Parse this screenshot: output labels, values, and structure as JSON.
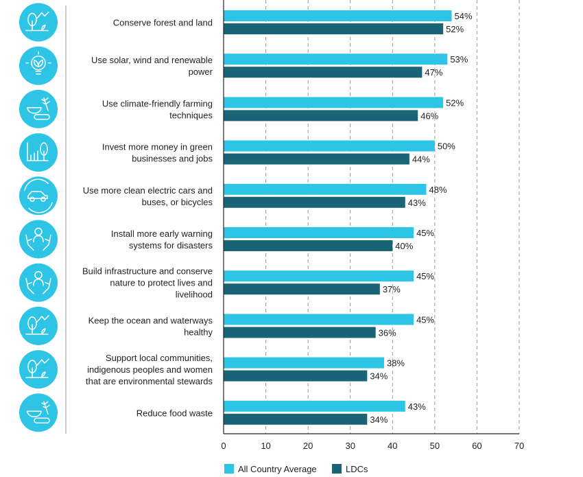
{
  "chart_data": {
    "type": "bar",
    "orientation": "horizontal",
    "categories": [
      "Conserve forest and land",
      "Use solar, wind and renewable power",
      "Use climate-friendly farming techniques",
      "Invest more money in green businesses and jobs",
      "Use more clean electric cars and buses, or bicycles",
      "Install more early warning systems for disasters",
      "Build infrastructure and conserve nature to protect lives and livelihood",
      "Keep the ocean and waterways healthy",
      "Support local communities, indigenous peoples and women that are environmental stewards",
      "Reduce food waste"
    ],
    "category_lines": [
      [
        "Conserve forest and land"
      ],
      [
        "Use solar, wind and renewable",
        "power"
      ],
      [
        "Use climate-friendly farming",
        "techniques"
      ],
      [
        "Invest more money in green",
        "businesses and jobs"
      ],
      [
        "Use more clean electric cars and",
        "buses, or bicycles"
      ],
      [
        "Install more early warning",
        "systems for disasters"
      ],
      [
        "Build infrastructure and conserve",
        "nature to protect lives and",
        "livelihood"
      ],
      [
        "Keep the ocean and waterways",
        "healthy"
      ],
      [
        "Support local communities,",
        "indigenous peoples and women",
        "that are environmental stewards"
      ],
      [
        "Reduce food waste"
      ]
    ],
    "icons": [
      "tree-landscape-icon",
      "lightbulb-plant-icon",
      "food-bowl-wheat-icon",
      "growth-chart-tree-icon",
      "electric-car-icon",
      "hands-person-icon",
      "hands-person-icon",
      "tree-landscape-icon",
      "tree-landscape-icon",
      "food-bowl-wheat-icon"
    ],
    "series": [
      {
        "name": "All Country Average",
        "color": "#2ec4e6",
        "values": [
          54,
          53,
          52,
          50,
          48,
          45,
          45,
          45,
          38,
          43
        ],
        "labels": [
          "54%",
          "53%",
          "52%",
          "50%",
          "48%",
          "45%",
          "45%",
          "45%",
          "38%",
          "43%"
        ]
      },
      {
        "name": "LDCs",
        "color": "#1a6478",
        "values": [
          52,
          47,
          46,
          44,
          43,
          40,
          37,
          36,
          34,
          34
        ],
        "labels": [
          "52%",
          "47%",
          "46%",
          "44%",
          "43%",
          "40%",
          "37%",
          "36%",
          "34%",
          "34%"
        ]
      }
    ],
    "xlim": [
      0,
      70
    ],
    "xticks": [
      "0",
      "10",
      "20",
      "30",
      "40",
      "50",
      "60",
      "70"
    ],
    "grid": "vertical dashed",
    "legend_position": "bottom",
    "icon_color": "#2ec4e6"
  }
}
